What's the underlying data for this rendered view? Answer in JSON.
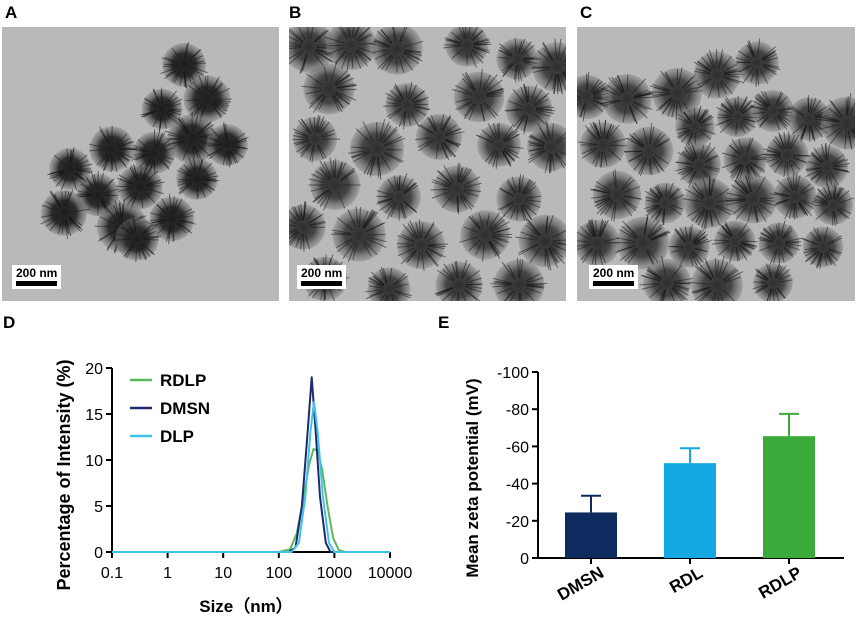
{
  "panels": {
    "A": "A",
    "B": "B",
    "C": "C",
    "D": "D",
    "E": "E"
  },
  "tem_images": [
    {
      "panel": "A",
      "scale_bar": "200 nm"
    },
    {
      "panel": "B",
      "scale_bar": "200 nm"
    },
    {
      "panel": "C",
      "scale_bar": "200 nm"
    }
  ],
  "chart_data": [
    {
      "panel": "D",
      "type": "line",
      "xlabel": "Size（nm）",
      "ylabel": "Percentage of Intensity (%)",
      "xscale": "log",
      "xlim": [
        0.1,
        10000
      ],
      "ylim": [
        0,
        20
      ],
      "x_ticks": [
        "0.1",
        "1",
        "10",
        "100",
        "1000",
        "10000"
      ],
      "y_ticks": [
        "0",
        "5",
        "10",
        "15",
        "20"
      ],
      "legend_position": "top-left",
      "series": [
        {
          "name": "RDLP",
          "color": "#5cb85c",
          "points": [
            [
              0.1,
              0
            ],
            [
              100,
              0
            ],
            [
              160,
              0.3
            ],
            [
              210,
              2
            ],
            [
              280,
              6
            ],
            [
              350,
              9.5
            ],
            [
              420,
              11.2
            ],
            [
              500,
              11.0
            ],
            [
              600,
              9.0
            ],
            [
              750,
              5.0
            ],
            [
              950,
              1.5
            ],
            [
              1200,
              0.2
            ],
            [
              1600,
              0
            ],
            [
              10000,
              0
            ]
          ]
        },
        {
          "name": "DMSN",
          "color": "#1e2a6e",
          "points": [
            [
              0.1,
              0
            ],
            [
              0.5,
              0
            ],
            [
              150,
              0
            ],
            [
              200,
              0.5
            ],
            [
              260,
              5
            ],
            [
              330,
              13
            ],
            [
              390,
              19.0
            ],
            [
              450,
              14
            ],
            [
              550,
              6
            ],
            [
              700,
              1
            ],
            [
              850,
              0
            ],
            [
              10000,
              0
            ]
          ]
        },
        {
          "name": "DLP",
          "color": "#3fc3e8",
          "points": [
            [
              0.1,
              0
            ],
            [
              170,
              0
            ],
            [
              230,
              1
            ],
            [
              300,
              6
            ],
            [
              370,
              13
            ],
            [
              430,
              16.3
            ],
            [
              500,
              13
            ],
            [
              620,
              6
            ],
            [
              800,
              1
            ],
            [
              1000,
              0
            ],
            [
              10000,
              0
            ]
          ]
        }
      ]
    },
    {
      "panel": "E",
      "type": "bar",
      "ylabel": "Mean zeta potential (mV)",
      "categories": [
        "DMSN",
        "RDL",
        "RDLP"
      ],
      "y_ticks": [
        "0",
        "-20",
        "-40",
        "-60",
        "-80",
        "-100"
      ],
      "ylim": [
        0,
        -100
      ],
      "series": [
        {
          "values": [
            -24.5,
            -51,
            -65.5
          ],
          "errors": [
            9,
            8,
            12
          ],
          "colors": [
            "#0e2a5e",
            "#14a9e3",
            "#3aaa3a"
          ]
        }
      ]
    }
  ]
}
